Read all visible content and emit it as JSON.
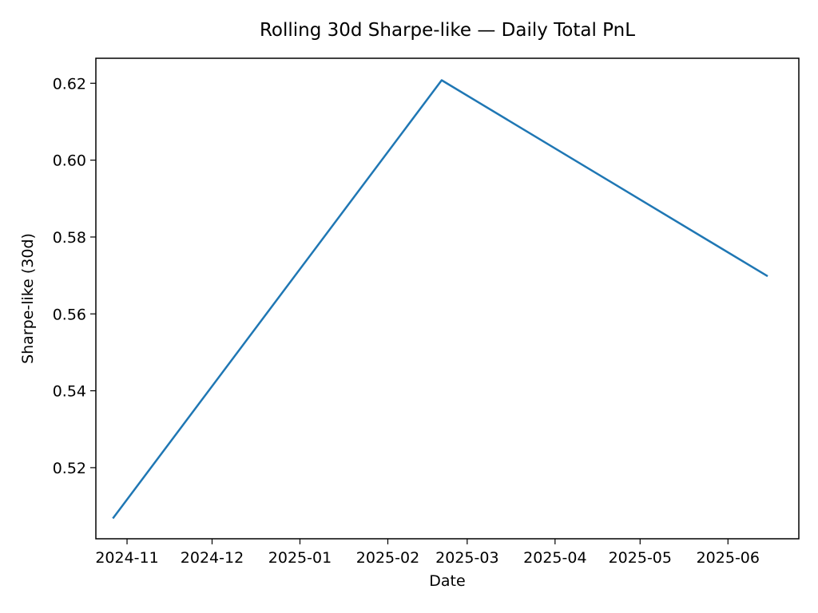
{
  "chart_data": {
    "type": "line",
    "title": "Rolling 30d Sharpe-like — Daily Total PnL",
    "xlabel": "Date",
    "ylabel": "Sharpe-like (30d)",
    "x_tick_labels": [
      "2024-11",
      "2024-12",
      "2025-01",
      "2025-02",
      "2025-03",
      "2025-04",
      "2025-05",
      "2025-06"
    ],
    "y_tick_labels": [
      "0.52",
      "0.54",
      "0.56",
      "0.58",
      "0.60",
      "0.62"
    ],
    "xlim": [
      "2024-10-21",
      "2025-06-26"
    ],
    "ylim": [
      0.5015,
      0.6265
    ],
    "grid": false,
    "series": [
      {
        "color": "#1f77b4",
        "points": [
          {
            "x": "2024-10-27",
            "y": 0.5068
          },
          {
            "x": "2025-02-20",
            "y": 0.6208
          },
          {
            "x": "2025-06-15",
            "y": 0.5698
          }
        ]
      }
    ]
  }
}
